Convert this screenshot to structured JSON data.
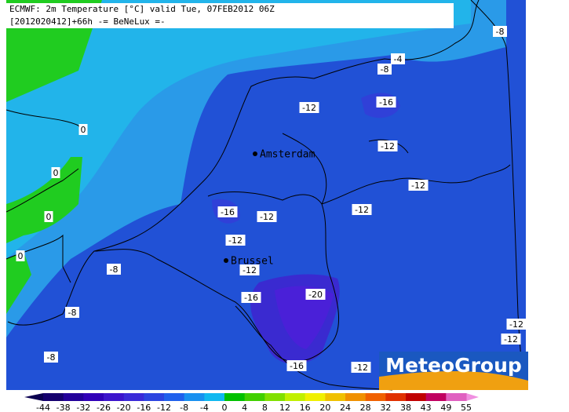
{
  "header": {
    "line1": "ECMWF: 2m Temperature [°C] valid Tue, 07FEB2012 06Z",
    "line2": "[2012020412]+66h -= BeNeLux =-"
  },
  "contour_labels": [
    -8,
    -4,
    -8,
    -16,
    -12,
    0,
    -12,
    0,
    -12,
    -16,
    -12,
    -12,
    0,
    -12,
    0,
    -8,
    -12,
    -20,
    -16,
    -8,
    -12,
    -12,
    -8,
    -16,
    -12
  ],
  "cities": [
    "Amsterdam",
    "Brussel"
  ],
  "logo": "MeteoGroup",
  "colorbar": {
    "ticks": [
      -44,
      -38,
      -32,
      -26,
      -20,
      -16,
      -12,
      -8,
      -4,
      0,
      4,
      8,
      12,
      16,
      20,
      24,
      28,
      32,
      38,
      43,
      49,
      55
    ],
    "colors": [
      "#14006e",
      "#22009a",
      "#3000b8",
      "#3c14cc",
      "#3a2ad8",
      "#2c44e0",
      "#2060ec",
      "#1890f0",
      "#10b8f0",
      "#00c000",
      "#40d000",
      "#80e000",
      "#c0f000",
      "#f0f000",
      "#f0c000",
      "#f09000",
      "#f06000",
      "#e03000",
      "#c00000",
      "#c00060",
      "#e060c0"
    ],
    "arrow_colors": [
      "#0a0050",
      "#f090e0"
    ]
  }
}
